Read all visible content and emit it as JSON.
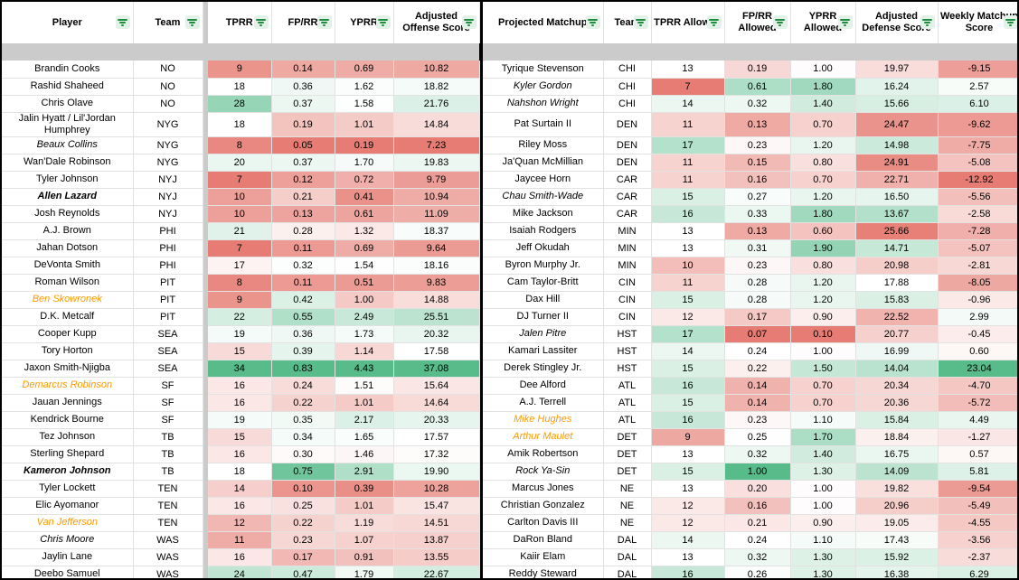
{
  "colors": {
    "gradient_red": "#E67C73",
    "gradient_mid": "#FFFFFF",
    "gradient_green": "#57BB8A",
    "orange_name": "#FF9900",
    "filter_icon_green": "#1E8E3E",
    "filter_icon_bg": "#E4F1E9",
    "range_border_green": "#1E9E53",
    "range_border_black": "#000000",
    "frozen_divider_gray": "#CBCBCB",
    "gridline": "#E2E2E2"
  },
  "conditional_format": {
    "left": {
      "tprr": {
        "min": 7,
        "mid": 18,
        "max": 34
      },
      "fprr": {
        "min": 0.05,
        "mid": 0.31,
        "max": 0.83
      },
      "yprr": {
        "min": 0.19,
        "mid": 1.55,
        "max": 4.43
      },
      "off_score": {
        "min": 7.23,
        "mid": 17.6,
        "max": 37.08
      }
    },
    "right": {
      "tprr_allowed": {
        "min": 7,
        "mid": 13,
        "max": 22
      },
      "fprr_allowed": {
        "min": 0.07,
        "mid": 0.24,
        "max": 1.0
      },
      "yprr_allowed": {
        "min": 0.1,
        "mid": 1.02,
        "max": 2.4
      },
      "def_score": {
        "min": 8.5,
        "mid": 17.9,
        "max": 25.9,
        "invert": true
      },
      "weekly_score": {
        "min": -12.92,
        "mid": 1.5,
        "max": 23.04
      }
    }
  },
  "left_table": {
    "headers": [
      "Player",
      "Team",
      "TPRR",
      "FP/RR",
      "YPRR",
      "Adjusted Offense Score"
    ],
    "rows": [
      {
        "player": "Brandin Cooks",
        "team": "NO",
        "tprr": "9",
        "fprr": "0.14",
        "yprr": "0.69",
        "off_score": "10.82"
      },
      {
        "player": "Rashid Shaheed",
        "team": "NO",
        "tprr": "18",
        "fprr": "0.36",
        "yprr": "1.62",
        "off_score": "18.82"
      },
      {
        "player": "Chris Olave",
        "team": "NO",
        "tprr": "28",
        "fprr": "0.37",
        "yprr": "1.58",
        "off_score": "21.76"
      },
      {
        "player": "Jalin Hyatt / Lil'Jordan Humphrey",
        "team": "NYG",
        "tprr": "18",
        "fprr": "0.19",
        "yprr": "1.01",
        "off_score": "14.84"
      },
      {
        "player": "Beaux Collins",
        "style": "italic",
        "team": "NYG",
        "tprr": "8",
        "fprr": "0.05",
        "yprr": "0.19",
        "off_score": "7.23"
      },
      {
        "player": "Wan'Dale Robinson",
        "team": "NYG",
        "tprr": "20",
        "fprr": "0.37",
        "yprr": "1.70",
        "off_score": "19.83"
      },
      {
        "player": "Tyler Johnson",
        "team": "NYJ",
        "tprr": "7",
        "fprr": "0.12",
        "yprr": "0.72",
        "off_score": "9.79"
      },
      {
        "player": "Allen Lazard",
        "style": "bold-italic",
        "team": "NYJ",
        "tprr": "10",
        "fprr": "0.21",
        "yprr": "0.41",
        "off_score": "10.94"
      },
      {
        "player": "Josh Reynolds",
        "team": "NYJ",
        "tprr": "10",
        "fprr": "0.13",
        "yprr": "0.61",
        "off_score": "11.09"
      },
      {
        "player": "A.J. Brown",
        "team": "PHI",
        "tprr": "21",
        "fprr": "0.28",
        "yprr": "1.32",
        "off_score": "18.37"
      },
      {
        "player": "Jahan Dotson",
        "team": "PHI",
        "tprr": "7",
        "fprr": "0.11",
        "yprr": "0.69",
        "off_score": "9.64"
      },
      {
        "player": "DeVonta Smith",
        "team": "PHI",
        "tprr": "17",
        "fprr": "0.32",
        "yprr": "1.54",
        "off_score": "18.16"
      },
      {
        "player": "Roman Wilson",
        "team": "PIT",
        "tprr": "8",
        "fprr": "0.11",
        "yprr": "0.51",
        "off_score": "9.83"
      },
      {
        "player": "Ben Skowronek",
        "style": "orange-italic",
        "team": "PIT",
        "tprr": "9",
        "fprr": "0.42",
        "yprr": "1.00",
        "off_score": "14.88"
      },
      {
        "player": "D.K. Metcalf",
        "team": "PIT",
        "tprr": "22",
        "fprr": "0.55",
        "yprr": "2.49",
        "off_score": "25.51"
      },
      {
        "player": "Cooper Kupp",
        "team": "SEA",
        "tprr": "19",
        "fprr": "0.36",
        "yprr": "1.73",
        "off_score": "20.32"
      },
      {
        "player": "Tory Horton",
        "team": "SEA",
        "tprr": "15",
        "fprr": "0.39",
        "yprr": "1.14",
        "off_score": "17.58"
      },
      {
        "player": "Jaxon Smith-Njigba",
        "team": "SEA",
        "tprr": "34",
        "fprr": "0.83",
        "yprr": "4.43",
        "off_score": "37.08"
      },
      {
        "player": "Demarcus Robinson",
        "style": "orange-italic",
        "team": "SF",
        "tprr": "16",
        "fprr": "0.24",
        "yprr": "1.51",
        "off_score": "15.64"
      },
      {
        "player": "Jauan Jennings",
        "team": "SF",
        "tprr": "16",
        "fprr": "0.22",
        "yprr": "1.01",
        "off_score": "14.64"
      },
      {
        "player": "Kendrick Bourne",
        "team": "SF",
        "tprr": "19",
        "fprr": "0.35",
        "yprr": "2.17",
        "off_score": "20.33"
      },
      {
        "player": "Tez Johnson",
        "team": "TB",
        "tprr": "15",
        "fprr": "0.34",
        "yprr": "1.65",
        "off_score": "17.57"
      },
      {
        "player": "Sterling Shepard",
        "team": "TB",
        "tprr": "16",
        "fprr": "0.30",
        "yprr": "1.46",
        "off_score": "17.32"
      },
      {
        "player": "Kameron Johnson",
        "style": "bold-italic",
        "team": "TB",
        "tprr": "18",
        "fprr": "0.75",
        "yprr": "2.91",
        "off_score": "19.90"
      },
      {
        "player": "Tyler Lockett",
        "team": "TEN",
        "tprr": "14",
        "fprr": "0.10",
        "yprr": "0.39",
        "off_score": "10.28"
      },
      {
        "player": "Elic Ayomanor",
        "team": "TEN",
        "tprr": "16",
        "fprr": "0.25",
        "yprr": "1.01",
        "off_score": "15.47"
      },
      {
        "player": "Van Jefferson",
        "style": "orange-italic",
        "team": "TEN",
        "tprr": "12",
        "fprr": "0.22",
        "yprr": "1.19",
        "off_score": "14.51"
      },
      {
        "player": "Chris Moore",
        "style": "italic",
        "team": "WAS",
        "tprr": "11",
        "fprr": "0.23",
        "yprr": "1.07",
        "off_score": "13.87"
      },
      {
        "player": "Jaylin Lane",
        "team": "WAS",
        "tprr": "16",
        "fprr": "0.17",
        "yprr": "0.91",
        "off_score": "13.55"
      },
      {
        "player": "Deebo Samuel",
        "team": "WAS",
        "tprr": "24",
        "fprr": "0.47",
        "yprr": "1.79",
        "off_score": "22.67"
      }
    ]
  },
  "right_table": {
    "headers": [
      "Projected Matchup",
      "Team",
      "TPRR Allowed",
      "FP/RR Allowed",
      "YPRR Allowed",
      "Adjusted Defense Score",
      "Weekly Matchup Score"
    ],
    "rows": [
      {
        "matchup": "Tyrique Stevenson",
        "team": "CHI",
        "tprr_allowed": "13",
        "fprr_allowed": "0.19",
        "yprr_allowed": "1.00",
        "def_score": "19.97",
        "weekly_score": "-9.15"
      },
      {
        "matchup": "Kyler Gordon",
        "style": "italic",
        "team": "CHI",
        "tprr_allowed": "7",
        "fprr_allowed": "0.61",
        "yprr_allowed": "1.80",
        "def_score": "16.24",
        "weekly_score": "2.57"
      },
      {
        "matchup": "Nahshon Wright",
        "style": "italic",
        "team": "CHI",
        "tprr_allowed": "14",
        "fprr_allowed": "0.32",
        "yprr_allowed": "1.40",
        "def_score": "15.66",
        "weekly_score": "6.10"
      },
      {
        "matchup": "Pat Surtain II",
        "team": "DEN",
        "tprr_allowed": "11",
        "fprr_allowed": "0.13",
        "yprr_allowed": "0.70",
        "def_score": "24.47",
        "weekly_score": "-9.62"
      },
      {
        "matchup": "Riley Moss",
        "team": "DEN",
        "tprr_allowed": "17",
        "fprr_allowed": "0.23",
        "yprr_allowed": "1.20",
        "def_score": "14.98",
        "weekly_score": "-7.75"
      },
      {
        "matchup": "Ja'Quan McMillian",
        "team": "DEN",
        "tprr_allowed": "11",
        "fprr_allowed": "0.15",
        "yprr_allowed": "0.80",
        "def_score": "24.91",
        "weekly_score": "-5.08"
      },
      {
        "matchup": "Jaycee Horn",
        "team": "CAR",
        "tprr_allowed": "11",
        "fprr_allowed": "0.16",
        "yprr_allowed": "0.70",
        "def_score": "22.71",
        "weekly_score": "-12.92"
      },
      {
        "matchup": "Chau Smith-Wade",
        "style": "italic",
        "team": "CAR",
        "tprr_allowed": "15",
        "fprr_allowed": "0.27",
        "yprr_allowed": "1.20",
        "def_score": "16.50",
        "weekly_score": "-5.56"
      },
      {
        "matchup": "Mike Jackson",
        "team": "CAR",
        "tprr_allowed": "16",
        "fprr_allowed": "0.33",
        "yprr_allowed": "1.80",
        "def_score": "13.67",
        "weekly_score": "-2.58"
      },
      {
        "matchup": "Isaiah Rodgers",
        "team": "MIN",
        "tprr_allowed": "13",
        "fprr_allowed": "0.13",
        "yprr_allowed": "0.60",
        "def_score": "25.66",
        "weekly_score": "-7.28"
      },
      {
        "matchup": "Jeff Okudah",
        "team": "MIN",
        "tprr_allowed": "13",
        "fprr_allowed": "0.31",
        "yprr_allowed": "1.90",
        "def_score": "14.71",
        "weekly_score": "-5.07"
      },
      {
        "matchup": "Byron Murphy Jr.",
        "team": "MIN",
        "tprr_allowed": "10",
        "fprr_allowed": "0.23",
        "yprr_allowed": "0.80",
        "def_score": "20.98",
        "weekly_score": "-2.81"
      },
      {
        "matchup": "Cam Taylor-Britt",
        "team": "CIN",
        "tprr_allowed": "11",
        "fprr_allowed": "0.28",
        "yprr_allowed": "1.20",
        "def_score": "17.88",
        "weekly_score": "-8.05"
      },
      {
        "matchup": "Dax Hill",
        "team": "CIN",
        "tprr_allowed": "15",
        "fprr_allowed": "0.28",
        "yprr_allowed": "1.20",
        "def_score": "15.83",
        "weekly_score": "-0.96"
      },
      {
        "matchup": "DJ Turner II",
        "team": "CIN",
        "tprr_allowed": "12",
        "fprr_allowed": "0.17",
        "yprr_allowed": "0.90",
        "def_score": "22.52",
        "weekly_score": "2.99"
      },
      {
        "matchup": "Jalen Pitre",
        "style": "italic",
        "team": "HST",
        "tprr_allowed": "17",
        "fprr_allowed": "0.07",
        "yprr_allowed": "0.10",
        "def_score": "20.77",
        "weekly_score": "-0.45"
      },
      {
        "matchup": "Kamari Lassiter",
        "team": "HST",
        "tprr_allowed": "14",
        "fprr_allowed": "0.24",
        "yprr_allowed": "1.00",
        "def_score": "16.99",
        "weekly_score": "0.60"
      },
      {
        "matchup": "Derek Stingley Jr.",
        "team": "HST",
        "tprr_allowed": "15",
        "fprr_allowed": "0.22",
        "yprr_allowed": "1.50",
        "def_score": "14.04",
        "weekly_score": "23.04"
      },
      {
        "matchup": "Dee Alford",
        "team": "ATL",
        "tprr_allowed": "16",
        "fprr_allowed": "0.14",
        "yprr_allowed": "0.70",
        "def_score": "20.34",
        "weekly_score": "-4.70"
      },
      {
        "matchup": "A.J. Terrell",
        "team": "ATL",
        "tprr_allowed": "15",
        "fprr_allowed": "0.14",
        "yprr_allowed": "0.70",
        "def_score": "20.36",
        "weekly_score": "-5.72"
      },
      {
        "matchup": "Mike Hughes",
        "style": "orange-italic",
        "team": "ATL",
        "tprr_allowed": "16",
        "fprr_allowed": "0.23",
        "yprr_allowed": "1.10",
        "def_score": "15.84",
        "weekly_score": "4.49"
      },
      {
        "matchup": "Arthur Maulet",
        "style": "orange-italic",
        "team": "DET",
        "tprr_allowed": "9",
        "fprr_allowed": "0.25",
        "yprr_allowed": "1.70",
        "def_score": "18.84",
        "weekly_score": "-1.27"
      },
      {
        "matchup": "Amik Robertson",
        "team": "DET",
        "tprr_allowed": "13",
        "fprr_allowed": "0.32",
        "yprr_allowed": "1.40",
        "def_score": "16.75",
        "weekly_score": "0.57"
      },
      {
        "matchup": "Rock Ya-Sin",
        "style": "italic",
        "team": "DET",
        "tprr_allowed": "15",
        "fprr_allowed": "1.00",
        "yprr_allowed": "1.30",
        "def_score": "14.09",
        "weekly_score": "5.81"
      },
      {
        "matchup": "Marcus Jones",
        "team": "NE",
        "tprr_allowed": "13",
        "fprr_allowed": "0.20",
        "yprr_allowed": "1.00",
        "def_score": "19.82",
        "weekly_score": "-9.54"
      },
      {
        "matchup": "Christian Gonzalez",
        "team": "NE",
        "tprr_allowed": "12",
        "fprr_allowed": "0.16",
        "yprr_allowed": "1.00",
        "def_score": "20.96",
        "weekly_score": "-5.49"
      },
      {
        "matchup": "Carlton Davis III",
        "team": "NE",
        "tprr_allowed": "12",
        "fprr_allowed": "0.21",
        "yprr_allowed": "0.90",
        "def_score": "19.05",
        "weekly_score": "-4.55"
      },
      {
        "matchup": "DaRon Bland",
        "team": "DAL",
        "tprr_allowed": "14",
        "fprr_allowed": "0.24",
        "yprr_allowed": "1.10",
        "def_score": "17.43",
        "weekly_score": "-3.56"
      },
      {
        "matchup": "Kaiir Elam",
        "team": "DAL",
        "tprr_allowed": "13",
        "fprr_allowed": "0.32",
        "yprr_allowed": "1.30",
        "def_score": "15.92",
        "weekly_score": "-2.37"
      },
      {
        "matchup": "Reddy Steward",
        "team": "DAL",
        "tprr_allowed": "16",
        "fprr_allowed": "0.26",
        "yprr_allowed": "1.30",
        "def_score": "16.38",
        "weekly_score": "6.29"
      }
    ]
  }
}
